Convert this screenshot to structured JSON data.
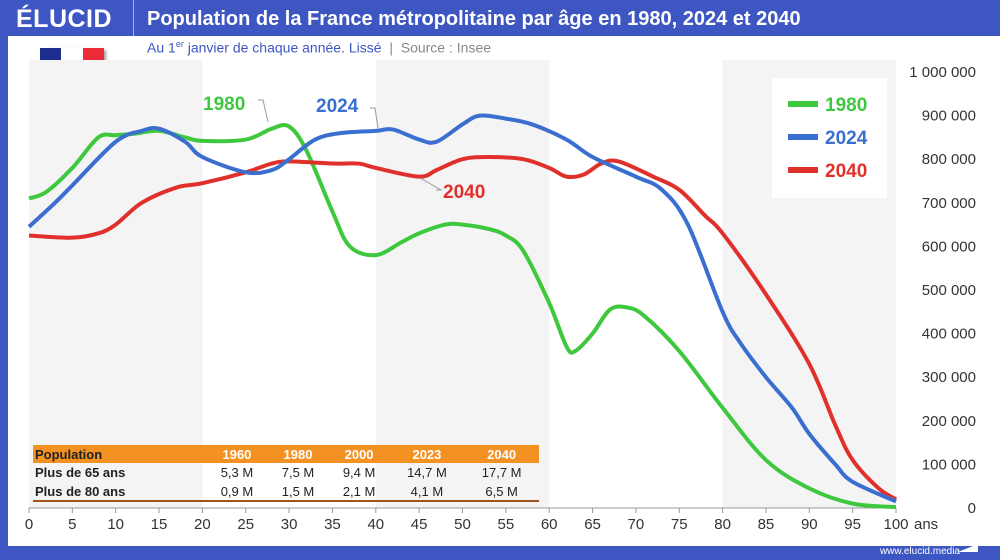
{
  "header": {
    "logo": "ÉLUCID",
    "title": "Population de la France métropolitaine par âge en 1980, 2024 et 2040"
  },
  "subtitle": {
    "pre": "Au 1",
    "sup": "er",
    "post": " janvier de chaque année. Lissé",
    "sep": "|",
    "source": "Source : Insee"
  },
  "footer": "www.elucid.media",
  "colors": {
    "header": "#3d56c2",
    "s1980": "#3ec83e",
    "s2024": "#3a6fd0",
    "s2040": "#e0302c",
    "table": "#f39123"
  },
  "table": {
    "headers": [
      "Population",
      "1960",
      "1980",
      "2000",
      "2023",
      "2040"
    ],
    "rows": [
      [
        "Plus de 65 ans",
        "5,3 M",
        "7,5 M",
        "9,4 M",
        "14,7 M",
        "17,7 M"
      ],
      [
        "Plus de 80 ans",
        "0,9 M",
        "1,5 M",
        "2,1 M",
        "4,1 M",
        "6,5 M"
      ]
    ]
  },
  "chart_data": {
    "type": "line",
    "xlabel": "ans",
    "xlim": [
      0,
      100
    ],
    "ylim": [
      0,
      1000000
    ],
    "xticks": [
      "0",
      "5",
      "10",
      "15",
      "20",
      "25",
      "30",
      "35",
      "40",
      "45",
      "50",
      "55",
      "60",
      "65",
      "70",
      "75",
      "80",
      "85",
      "90",
      "95",
      "100"
    ],
    "yticks": [
      "0",
      "100 000",
      "200 000",
      "300 000",
      "400 000",
      "500 000",
      "600 000",
      "700 000",
      "800 000",
      "900 000",
      "1 000 000"
    ],
    "legend_placement": "top-right",
    "series": [
      {
        "name": "1980",
        "color": "#3ec83e",
        "x": [
          0,
          2,
          5,
          8,
          10,
          12,
          15,
          18,
          20,
          25,
          28,
          30,
          32,
          35,
          37,
          40,
          43,
          45,
          48,
          50,
          53,
          55,
          57,
          60,
          62,
          63,
          65,
          67,
          69,
          71,
          75,
          80,
          85,
          90,
          95,
          100
        ],
        "y": [
          710000,
          725000,
          780000,
          850000,
          855000,
          858000,
          865000,
          850000,
          842000,
          845000,
          870000,
          875000,
          820000,
          680000,
          600000,
          580000,
          610000,
          630000,
          650000,
          650000,
          640000,
          625000,
          590000,
          470000,
          370000,
          360000,
          400000,
          455000,
          460000,
          440000,
          360000,
          230000,
          110000,
          45000,
          10000,
          2000
        ]
      },
      {
        "name": "2024",
        "color": "#3a6fd0",
        "x": [
          0,
          3,
          5,
          10,
          13,
          15,
          18,
          20,
          25,
          28,
          30,
          33,
          36,
          40,
          42,
          45,
          47,
          50,
          52,
          55,
          58,
          62,
          65,
          70,
          73,
          76,
          80,
          82,
          85,
          88,
          90,
          93,
          95,
          100
        ],
        "y": [
          645000,
          700000,
          740000,
          840000,
          865000,
          870000,
          840000,
          805000,
          770000,
          775000,
          800000,
          845000,
          860000,
          865000,
          868000,
          845000,
          840000,
          880000,
          900000,
          893000,
          880000,
          845000,
          805000,
          760000,
          730000,
          650000,
          450000,
          380000,
          300000,
          230000,
          170000,
          100000,
          60000,
          15000
        ]
      },
      {
        "name": "2040",
        "color": "#e0302c",
        "x": [
          0,
          5,
          8,
          10,
          13,
          17,
          20,
          25,
          28,
          30,
          35,
          38,
          40,
          45,
          47,
          50,
          53,
          57,
          60,
          62,
          64,
          66,
          68,
          72,
          75,
          78,
          80,
          85,
          90,
          93,
          95,
          98,
          100
        ],
        "y": [
          625000,
          620000,
          630000,
          650000,
          700000,
          735000,
          745000,
          770000,
          790000,
          795000,
          790000,
          790000,
          780000,
          760000,
          775000,
          800000,
          805000,
          800000,
          780000,
          760000,
          765000,
          790000,
          795000,
          760000,
          730000,
          670000,
          630000,
          490000,
          330000,
          190000,
          110000,
          45000,
          20000
        ]
      }
    ]
  }
}
